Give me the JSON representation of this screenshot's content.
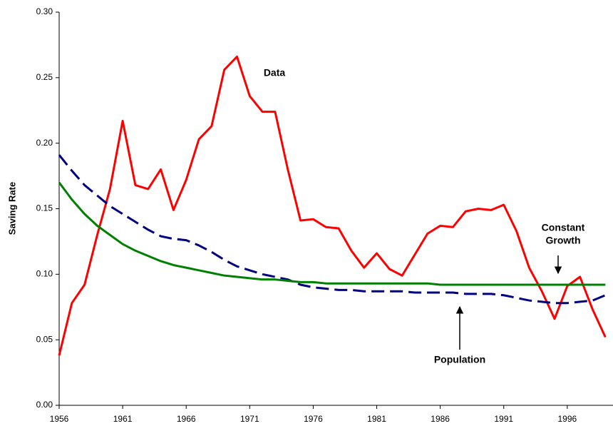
{
  "chart_data": {
    "type": "line",
    "y_label": "Saving Rate",
    "annotations": [
      "Data",
      "Constant",
      "Growth",
      "Population"
    ],
    "x": [
      1956,
      1957,
      1958,
      1959,
      1960,
      1961,
      1962,
      1963,
      1964,
      1965,
      1966,
      1967,
      1968,
      1969,
      1970,
      1971,
      1972,
      1973,
      1974,
      1975,
      1976,
      1977,
      1978,
      1979,
      1980,
      1981,
      1982,
      1983,
      1984,
      1985,
      1986,
      1987,
      1988,
      1989,
      1990,
      1991,
      1992,
      1993,
      1994,
      1995,
      1996,
      1997,
      1998,
      1999
    ],
    "xlim": [
      1956,
      1999.6
    ],
    "xticks": [
      1956,
      1961,
      1966,
      1971,
      1976,
      1981,
      1986,
      1991,
      1996
    ],
    "ylim": [
      0,
      0.3
    ],
    "yticks": [
      {
        "value": 0,
        "label": "0.00"
      },
      {
        "value": 0.05,
        "label": "0.05"
      },
      {
        "value": 0.1,
        "label": "0.10"
      },
      {
        "value": 0.15,
        "label": "0.15"
      },
      {
        "value": 0.2,
        "label": "0.20"
      },
      {
        "value": 0.25,
        "label": "0.25"
      },
      {
        "value": 0.3,
        "label": "0.30"
      }
    ],
    "grid": false,
    "series": [
      {
        "color": "#ff0000",
        "dash": false,
        "values": [
          0.038,
          0.078,
          0.092,
          0.13,
          0.165,
          0.217,
          0.168,
          0.165,
          0.18,
          0.149,
          0.172,
          0.203,
          0.213,
          0.256,
          0.266,
          0.236,
          0.224,
          0.224,
          0.18,
          0.141,
          0.142,
          0.136,
          0.135,
          0.118,
          0.105,
          0.116,
          0.104,
          0.099,
          0.115,
          0.131,
          0.137,
          0.136,
          0.148,
          0.15,
          0.149,
          0.153,
          0.133,
          0.105,
          0.087,
          0.066,
          0.091,
          0.098,
          0.073,
          0.052
        ]
      },
      {
        "color": "#000080",
        "dash": true,
        "values": [
          0.191,
          0.179,
          0.168,
          0.16,
          0.152,
          0.146,
          0.14,
          0.134,
          0.129,
          0.127,
          0.126,
          0.122,
          0.117,
          0.111,
          0.106,
          0.103,
          0.1,
          0.098,
          0.096,
          0.092,
          0.09,
          0.089,
          0.088,
          0.088,
          0.087,
          0.087,
          0.087,
          0.087,
          0.086,
          0.086,
          0.086,
          0.086,
          0.085,
          0.085,
          0.085,
          0.084,
          0.082,
          0.08,
          0.079,
          0.078,
          0.078,
          0.079,
          0.08,
          0.084
        ]
      },
      {
        "color": "#008000",
        "dash": false,
        "values": [
          0.17,
          0.157,
          0.146,
          0.137,
          0.13,
          0.123,
          0.118,
          0.114,
          0.11,
          0.107,
          0.105,
          0.103,
          0.101,
          0.099,
          0.098,
          0.097,
          0.096,
          0.096,
          0.095,
          0.094,
          0.094,
          0.093,
          0.093,
          0.093,
          0.093,
          0.093,
          0.093,
          0.093,
          0.093,
          0.093,
          0.092,
          0.092,
          0.092,
          0.092,
          0.092,
          0.092,
          0.092,
          0.092,
          0.092,
          0.092,
          0.092,
          0.092,
          0.092,
          0.092
        ]
      }
    ]
  }
}
